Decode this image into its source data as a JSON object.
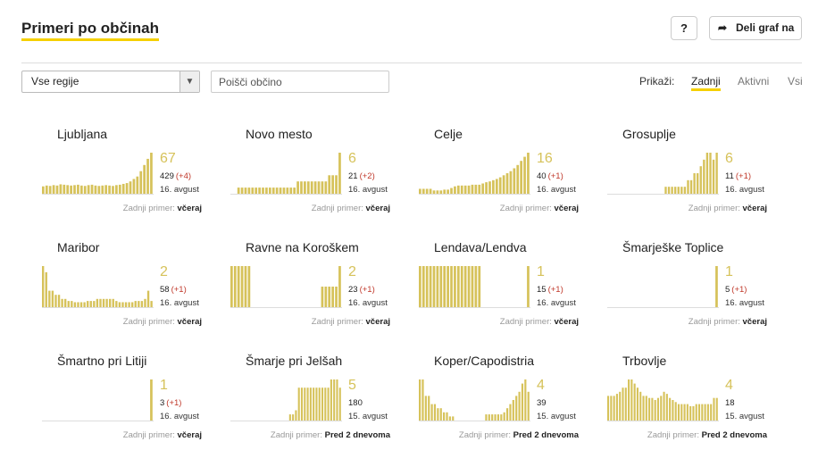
{
  "header": {
    "title": "Primeri po občinah",
    "help_label": "?",
    "share_label": "Deli graf na"
  },
  "filters": {
    "region_value": "Vse regije",
    "search_placeholder": "Poišči občino"
  },
  "view": {
    "label": "Prikaži:",
    "tabs": [
      "Zadnji",
      "Aktivni",
      "Vsi"
    ],
    "active": "Zadnji"
  },
  "colors": {
    "bar": "#d6c25a",
    "accent": "#f5d000",
    "delta": "#c0392b"
  },
  "last_prefix": "Zadnji primer:",
  "municipalities": [
    {
      "name": "Ljubljana",
      "latest": "67",
      "total": "429",
      "delta": "(+4)",
      "date": "16. avgust",
      "last_case": "včeraj",
      "bars": [
        18,
        20,
        19,
        21,
        20,
        23,
        22,
        21,
        20,
        21,
        22,
        20,
        19,
        21,
        22,
        20,
        19,
        20,
        21,
        20,
        19,
        21,
        22,
        24,
        26,
        30,
        36,
        42,
        55,
        70,
        85,
        100
      ]
    },
    {
      "name": "Novo mesto",
      "latest": "6",
      "total": "21",
      "delta": "(+2)",
      "date": "16. avgust",
      "last_case": "včeraj",
      "bars": [
        0,
        0,
        15,
        15,
        15,
        15,
        15,
        15,
        15,
        15,
        15,
        15,
        15,
        15,
        15,
        15,
        15,
        15,
        15,
        30,
        30,
        30,
        30,
        30,
        30,
        30,
        30,
        30,
        45,
        45,
        45,
        100
      ]
    },
    {
      "name": "Celje",
      "latest": "16",
      "total": "40",
      "delta": "(+1)",
      "date": "16. avgust",
      "last_case": "včeraj",
      "bars": [
        12,
        12,
        12,
        12,
        8,
        8,
        8,
        10,
        10,
        14,
        18,
        20,
        20,
        20,
        20,
        22,
        22,
        22,
        25,
        28,
        30,
        33,
        36,
        40,
        45,
        50,
        55,
        62,
        70,
        80,
        90,
        100
      ]
    },
    {
      "name": "Grosuplje",
      "latest": "6",
      "total": "11",
      "delta": "(+1)",
      "date": "16. avgust",
      "last_case": "včeraj",
      "bars": [
        0,
        0,
        0,
        0,
        0,
        0,
        0,
        0,
        0,
        0,
        0,
        0,
        0,
        0,
        0,
        0,
        0,
        0,
        17,
        17,
        17,
        17,
        17,
        17,
        17,
        33,
        33,
        50,
        50,
        67,
        83,
        100,
        100,
        83,
        100
      ]
    },
    {
      "name": "Maribor",
      "latest": "2",
      "total": "58",
      "delta": "(+1)",
      "date": "16. avgust",
      "last_case": "včeraj",
      "bars": [
        100,
        85,
        40,
        40,
        30,
        30,
        20,
        20,
        15,
        15,
        12,
        12,
        12,
        12,
        15,
        15,
        15,
        20,
        20,
        20,
        20,
        20,
        20,
        15,
        12,
        12,
        12,
        12,
        12,
        15,
        15,
        15,
        20,
        40,
        15
      ]
    },
    {
      "name": "Ravne na Koroškem",
      "latest": "2",
      "total": "23",
      "delta": "(+1)",
      "date": "16. avgust",
      "last_case": "včeraj",
      "bars": [
        100,
        100,
        100,
        100,
        100,
        100,
        0,
        0,
        0,
        0,
        0,
        0,
        0,
        0,
        0,
        0,
        0,
        0,
        0,
        0,
        0,
        0,
        0,
        0,
        0,
        0,
        50,
        50,
        50,
        50,
        50,
        100
      ]
    },
    {
      "name": "Lendava/Lendva",
      "latest": "1",
      "total": "15",
      "delta": "(+1)",
      "date": "16. avgust",
      "last_case": "včeraj",
      "bars": [
        100,
        100,
        100,
        100,
        100,
        100,
        100,
        100,
        100,
        100,
        100,
        100,
        100,
        100,
        100,
        100,
        100,
        100,
        0,
        0,
        0,
        0,
        0,
        0,
        0,
        0,
        0,
        0,
        0,
        0,
        0,
        100
      ]
    },
    {
      "name": "Šmarješke Toplice",
      "latest": "1",
      "total": "5",
      "delta": "(+1)",
      "date": "16. avgust",
      "last_case": "včeraj",
      "bars": [
        0,
        0,
        0,
        0,
        0,
        0,
        0,
        0,
        0,
        0,
        0,
        0,
        0,
        0,
        0,
        0,
        0,
        0,
        0,
        0,
        0,
        0,
        0,
        0,
        0,
        0,
        0,
        0,
        0,
        0,
        0,
        100
      ]
    },
    {
      "name": "Šmartno pri Litiji",
      "latest": "1",
      "total": "3",
      "delta": "(+1)",
      "date": "16. avgust",
      "last_case": "včeraj",
      "bars": [
        0,
        0,
        0,
        0,
        0,
        0,
        0,
        0,
        0,
        0,
        0,
        0,
        0,
        0,
        0,
        0,
        0,
        0,
        0,
        0,
        0,
        0,
        0,
        0,
        0,
        0,
        0,
        0,
        0,
        0,
        0,
        100
      ]
    },
    {
      "name": "Šmarje pri Jelšah",
      "latest": "5",
      "total": "180",
      "delta": "",
      "date": "15. avgust",
      "last_case": "Pred 2 dnevoma",
      "bars": [
        0,
        0,
        0,
        0,
        0,
        0,
        0,
        0,
        0,
        0,
        0,
        0,
        0,
        0,
        0,
        0,
        0,
        0,
        0,
        0,
        15,
        15,
        25,
        80,
        80,
        80,
        80,
        80,
        80,
        80,
        80,
        80,
        80,
        80,
        100,
        100,
        100,
        80
      ]
    },
    {
      "name": "Koper/Capodistria",
      "latest": "4",
      "total": "39",
      "delta": "",
      "date": "15. avgust",
      "last_case": "Pred 2 dnevoma",
      "bars": [
        100,
        100,
        60,
        60,
        40,
        40,
        30,
        30,
        20,
        20,
        10,
        10,
        0,
        0,
        0,
        0,
        0,
        0,
        0,
        0,
        0,
        0,
        15,
        15,
        15,
        15,
        15,
        15,
        20,
        30,
        40,
        50,
        60,
        70,
        90,
        100,
        70
      ]
    },
    {
      "name": "Trbovlje",
      "latest": "4",
      "total": "18",
      "delta": "",
      "date": "15. avgust",
      "last_case": "Pred 2 dnevoma",
      "bars": [
        60,
        60,
        60,
        65,
        70,
        80,
        80,
        100,
        100,
        90,
        80,
        70,
        60,
        60,
        55,
        55,
        50,
        55,
        60,
        70,
        65,
        55,
        50,
        45,
        40,
        40,
        40,
        40,
        35,
        35,
        40,
        40,
        40,
        40,
        40,
        40,
        55,
        55
      ]
    }
  ]
}
